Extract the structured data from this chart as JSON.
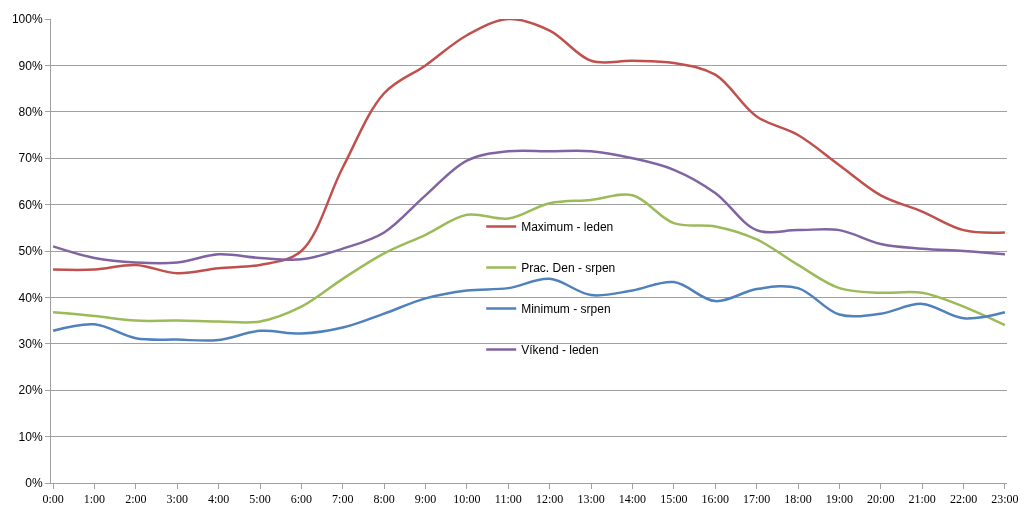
{
  "chart_data": {
    "type": "line",
    "categories": [
      "0:00",
      "1:00",
      "2:00",
      "3:00",
      "4:00",
      "5:00",
      "6:00",
      "7:00",
      "8:00",
      "9:00",
      "10:00",
      "11:00",
      "12:00",
      "13:00",
      "14:00",
      "15:00",
      "16:00",
      "17:00",
      "18:00",
      "19:00",
      "20:00",
      "21:00",
      "22:00",
      "23:00"
    ],
    "series": [
      {
        "name": "Maximum - leden",
        "color": "#c0504d",
        "values": [
          46,
          46,
          47,
          45.2,
          46.3,
          47,
          50,
          68,
          84,
          90,
          96.5,
          100,
          97.5,
          91,
          91,
          90.5,
          88,
          79,
          75,
          68.5,
          62,
          58.5,
          54.5,
          54
        ]
      },
      {
        "name": "Prac. Den - srpen",
        "color": "#9bbb59",
        "values": [
          36.8,
          36,
          35,
          35,
          34.8,
          34.8,
          38,
          44,
          49.5,
          53.5,
          57.8,
          57,
          60.3,
          61,
          62,
          56,
          55.3,
          52.5,
          47,
          42,
          41,
          41,
          38,
          34
        ]
      },
      {
        "name": "Minimum - srpen",
        "color": "#4f81bd",
        "values": [
          32.8,
          34.2,
          31.2,
          30.9,
          30.8,
          32.8,
          32.2,
          33.5,
          36.5,
          39.8,
          41.5,
          42,
          44,
          40.5,
          41.5,
          43.3,
          39.2,
          41.8,
          42,
          36.3,
          36.5,
          38.6,
          35.5,
          36.8
        ]
      },
      {
        "name": "Víkend - leden",
        "color": "#8064a2",
        "values": [
          51,
          48.5,
          47.5,
          47.5,
          49.3,
          48.5,
          48.2,
          50.5,
          54,
          62,
          69.5,
          71.5,
          71.5,
          71.5,
          70,
          67.5,
          62.5,
          54.5,
          54.5,
          54.5,
          51.5,
          50.5,
          50,
          49.3
        ]
      }
    ],
    "ylim": [
      0,
      100
    ],
    "yticks": [
      {
        "value": 0,
        "label": "0%"
      },
      {
        "value": 10,
        "label": "10%"
      },
      {
        "value": 20,
        "label": "20%"
      },
      {
        "value": 30,
        "label": "30%"
      },
      {
        "value": 40,
        "label": "40%"
      },
      {
        "value": 50,
        "label": "50%"
      },
      {
        "value": 60,
        "label": "60%"
      },
      {
        "value": 70,
        "label": "70%"
      },
      {
        "value": 80,
        "label": "80%"
      },
      {
        "value": 90,
        "label": "90%"
      },
      {
        "value": 100,
        "label": "100%"
      }
    ],
    "grid": "y",
    "legend": "center",
    "marker": "none",
    "line_style": "solid"
  }
}
